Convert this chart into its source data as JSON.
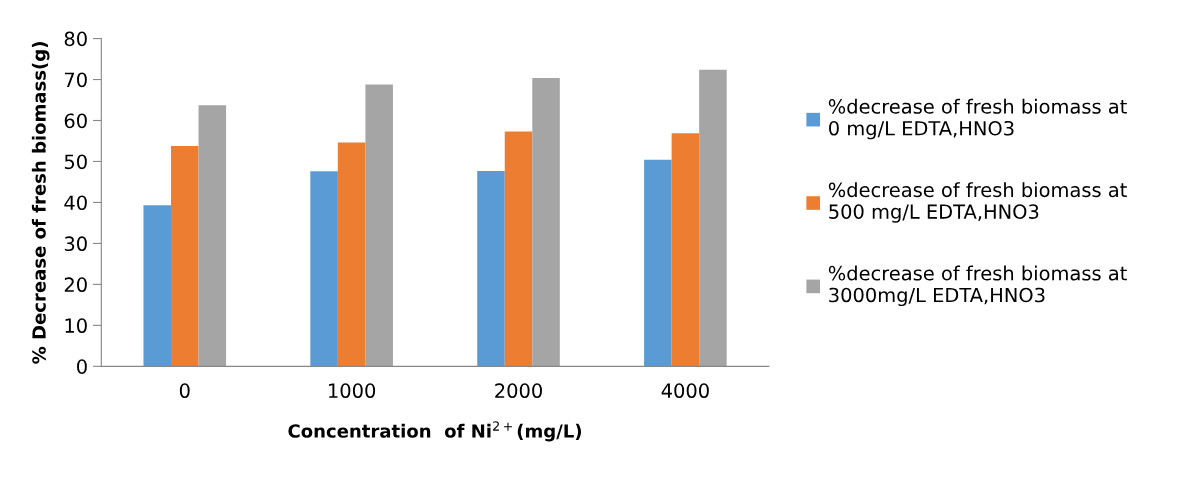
{
  "chart_data": {
    "type": "bar",
    "categories": [
      "0",
      "1000",
      "2000",
      "4000"
    ],
    "xlabel": "Concentration  of Ni$^{2+}$(mg/L)",
    "ylabel": "% Decrease of fresh biomass(g)",
    "ylim": [
      0,
      80
    ],
    "yticks": [
      0,
      10,
      20,
      30,
      40,
      50,
      60,
      70,
      80
    ],
    "grid": false,
    "legend": "right",
    "series": [
      {
        "name": "%decrease of fresh biomass at\n0 mg/L EDTA,HNO3",
        "color": "#5b9bd5",
        "values": [
          39.3,
          47.6,
          47.7,
          50.4
        ]
      },
      {
        "name": "%decrease of fresh biomass at\n500 mg/L EDTA,HNO3",
        "color": "#ed7d31",
        "values": [
          53.8,
          54.6,
          57.3,
          56.9
        ]
      },
      {
        "name": "%decrease of fresh biomass at\n3000mg/L EDTA,HNO3",
        "color": "#a5a5a5",
        "values": [
          63.7,
          68.8,
          70.4,
          72.4
        ]
      }
    ]
  }
}
